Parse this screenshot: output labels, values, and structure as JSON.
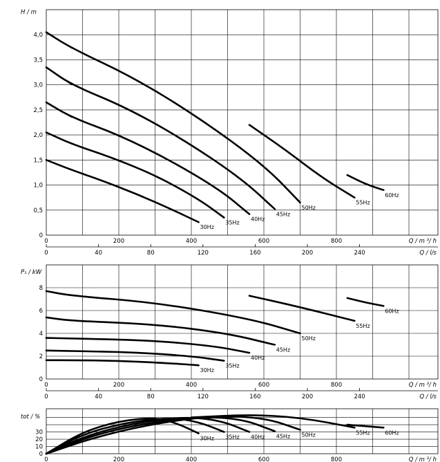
{
  "chart_data": [
    {
      "type": "line",
      "ylabel": "H / m",
      "xlabel": "Q / m ³/ h",
      "xlim": [
        0,
        1080
      ],
      "ylim": [
        0,
        4.5
      ],
      "xticks": [
        "0",
        "200",
        "400",
        "600",
        "800"
      ],
      "yticks": [
        "0",
        "0,5",
        "1,0",
        "1,5",
        "2,0",
        "2,5",
        "3,0",
        "3,5",
        "4,0"
      ],
      "secondary_x": {
        "label": "Q / l/s",
        "ticks": [
          "0",
          "40",
          "80",
          "120",
          "160",
          "200",
          "240"
        ]
      },
      "grid": true,
      "series": [
        {
          "name": "30Hz",
          "x": [
            0,
            70,
            150,
            250,
            350,
            420
          ],
          "y": [
            1.5,
            1.3,
            1.1,
            0.82,
            0.5,
            0.26
          ]
        },
        {
          "name": "35Hz",
          "x": [
            0,
            70,
            180,
            300,
            420,
            490
          ],
          "y": [
            2.05,
            1.82,
            1.55,
            1.2,
            0.72,
            0.35
          ]
        },
        {
          "name": "40Hz",
          "x": [
            0,
            70,
            200,
            340,
            480,
            560
          ],
          "y": [
            2.65,
            2.35,
            2.0,
            1.5,
            0.9,
            0.42
          ]
        },
        {
          "name": "45Hz",
          "x": [
            0,
            70,
            220,
            380,
            540,
            630
          ],
          "y": [
            3.35,
            3.0,
            2.55,
            1.9,
            1.12,
            0.52
          ]
        },
        {
          "name": "50Hz",
          "x": [
            0,
            70,
            240,
            420,
            600,
            700
          ],
          "y": [
            4.05,
            3.73,
            3.15,
            2.35,
            1.4,
            0.65
          ]
        },
        {
          "name": "55Hz",
          "x": [
            560,
            660,
            760,
            850
          ],
          "y": [
            2.2,
            1.7,
            1.15,
            0.75
          ]
        },
        {
          "name": "60Hz",
          "x": [
            830,
            880,
            930
          ],
          "y": [
            1.2,
            1.02,
            0.9
          ]
        }
      ]
    },
    {
      "type": "line",
      "ylabel": "P₁ / kW",
      "xlabel": "Q / m ³/ h",
      "xlim": [
        0,
        1080
      ],
      "ylim": [
        0,
        10
      ],
      "xticks": [
        "0",
        "200",
        "400",
        "600",
        "800"
      ],
      "yticks": [
        "0",
        "2",
        "4",
        "6",
        "8"
      ],
      "secondary_x": {
        "label": "Q / l/s",
        "ticks": [
          "0",
          "40",
          "80",
          "120",
          "160",
          "200",
          "240"
        ]
      },
      "grid": true,
      "series": [
        {
          "name": "30Hz",
          "x": [
            0,
            70,
            200,
            330,
            420
          ],
          "y": [
            1.65,
            1.65,
            1.6,
            1.4,
            1.2
          ]
        },
        {
          "name": "35Hz",
          "x": [
            0,
            70,
            240,
            400,
            490
          ],
          "y": [
            2.5,
            2.45,
            2.35,
            2.0,
            1.6
          ]
        },
        {
          "name": "40Hz",
          "x": [
            0,
            70,
            280,
            460,
            560
          ],
          "y": [
            3.6,
            3.55,
            3.4,
            2.9,
            2.3
          ]
        },
        {
          "name": "45Hz",
          "x": [
            0,
            70,
            300,
            500,
            630
          ],
          "y": [
            5.4,
            5.1,
            4.8,
            4.0,
            3.0
          ]
        },
        {
          "name": "50Hz",
          "x": [
            0,
            70,
            300,
            560,
            700
          ],
          "y": [
            7.7,
            7.3,
            6.7,
            5.3,
            4.0
          ]
        },
        {
          "name": "55Hz",
          "x": [
            560,
            700,
            850
          ],
          "y": [
            7.3,
            6.3,
            5.1
          ]
        },
        {
          "name": "60Hz",
          "x": [
            830,
            880,
            930
          ],
          "y": [
            7.1,
            6.7,
            6.4
          ]
        }
      ]
    },
    {
      "type": "line",
      "ylabel": "tot / %",
      "xlabel": "Q / m ³/ h",
      "xlim": [
        0,
        1080
      ],
      "ylim": [
        0,
        62
      ],
      "xticks": [
        "0",
        "200",
        "400",
        "600",
        "800"
      ],
      "yticks": [
        "0",
        "10",
        "20",
        "30"
      ],
      "grid": true,
      "series": [
        {
          "name": "30Hz",
          "x": [
            0,
            100,
            200,
            300,
            360,
            420
          ],
          "y": [
            0,
            30,
            45,
            50,
            42,
            28
          ]
        },
        {
          "name": "35Hz",
          "x": [
            0,
            100,
            220,
            340,
            420,
            490
          ],
          "y": [
            0,
            27,
            43,
            50,
            44,
            30
          ]
        },
        {
          "name": "40Hz",
          "x": [
            0,
            110,
            240,
            380,
            480,
            560
          ],
          "y": [
            0,
            25,
            42,
            51,
            46,
            30
          ]
        },
        {
          "name": "45Hz",
          "x": [
            0,
            120,
            260,
            420,
            540,
            630
          ],
          "y": [
            0,
            24,
            41,
            51,
            48,
            31
          ]
        },
        {
          "name": "50Hz",
          "x": [
            0,
            130,
            280,
            450,
            600,
            700
          ],
          "y": [
            0,
            22,
            40,
            52,
            50,
            33
          ]
        },
        {
          "name": "55Hz",
          "x": [
            400,
            560,
            700,
            850
          ],
          "y": [
            50,
            54,
            50,
            36
          ]
        },
        {
          "name": "60Hz",
          "x": [
            830,
            930
          ],
          "y": [
            40,
            36
          ]
        }
      ]
    }
  ]
}
